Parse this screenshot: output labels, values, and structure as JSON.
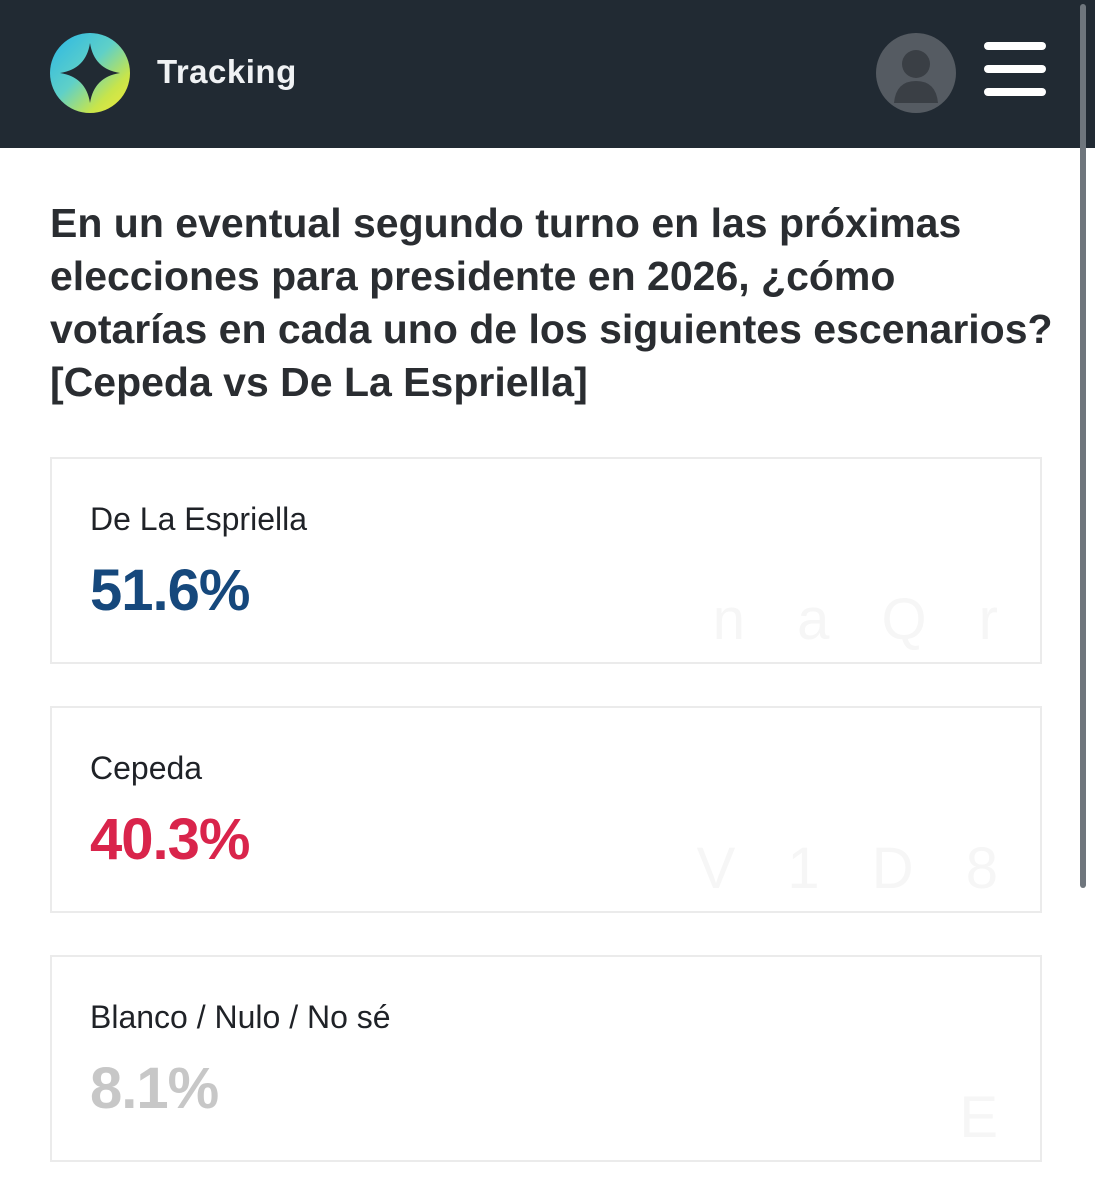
{
  "header": {
    "app_title": "Tracking",
    "logo_icon": "compass-star-icon",
    "avatar_icon": "user-silhouette-icon",
    "menu_icon": "hamburger-menu-icon",
    "background_color": "#212a33"
  },
  "question": {
    "text": "En un eventual segundo turno en las próximas elecciones para presidente en 2026, ¿cómo votarías en cada uno de los siguientes escenarios? [Cepeda vs De La Espriella]"
  },
  "results": [
    {
      "label": "De La Espriella",
      "value": "51.6%",
      "color": "#16487c",
      "watermark": "n a Q r"
    },
    {
      "label": "Cepeda",
      "value": "40.3%",
      "color": "#d9244b",
      "watermark": "V 1 D 8"
    },
    {
      "label": "Blanco / Nulo / No sé",
      "value": "8.1%",
      "color": "#c7c7c7",
      "watermark": "E"
    }
  ]
}
